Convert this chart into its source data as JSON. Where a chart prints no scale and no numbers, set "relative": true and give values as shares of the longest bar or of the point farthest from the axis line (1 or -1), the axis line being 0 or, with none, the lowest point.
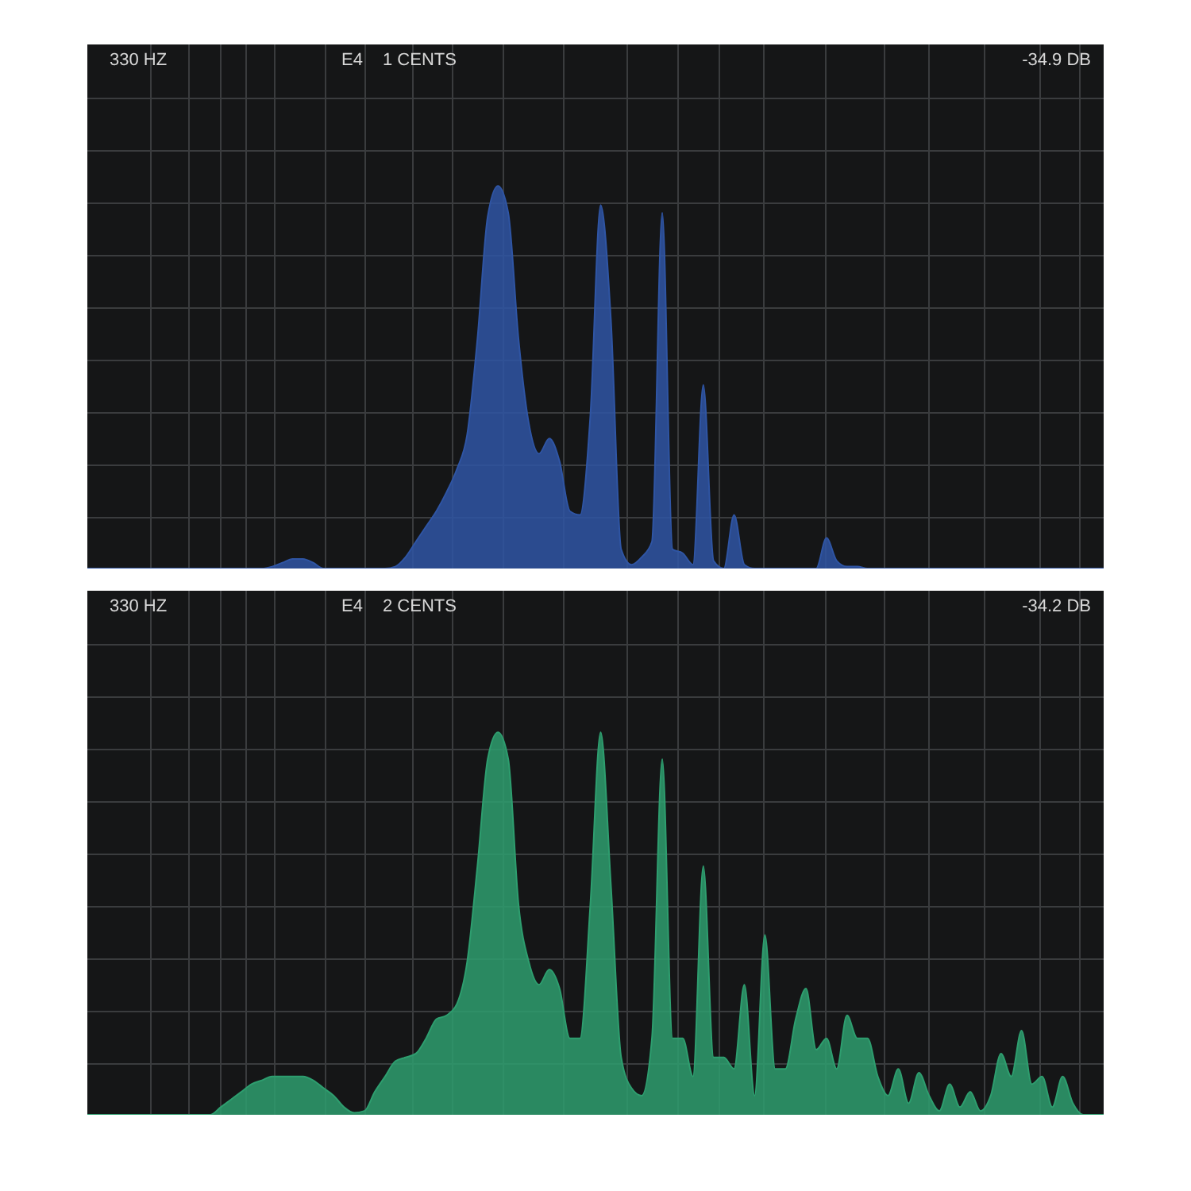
{
  "chart_data": [
    {
      "type": "area",
      "relative": true,
      "grid": true,
      "annotations": [
        "330 HZ",
        "E4",
        "1 CENTS",
        "-34.9 DB"
      ],
      "categories": [
        null,
        null,
        null,
        null,
        null,
        null,
        null,
        null,
        null,
        null,
        null,
        null,
        null,
        null,
        null,
        null,
        null,
        null,
        null,
        null,
        null,
        null,
        null,
        null,
        null,
        null,
        null,
        null,
        null,
        null,
        null,
        null,
        null,
        null,
        null,
        null,
        null,
        null,
        null,
        null,
        null,
        null,
        null,
        null,
        null,
        null,
        null,
        null,
        null,
        null,
        null,
        null,
        null,
        null,
        null,
        null,
        null,
        null,
        null,
        null,
        null,
        null,
        null,
        null,
        null,
        null,
        null,
        null,
        null,
        null,
        null,
        null,
        null,
        null,
        null,
        null,
        null,
        null,
        null,
        null,
        null,
        null,
        null,
        null,
        null,
        null,
        null,
        null,
        null,
        null,
        null,
        null,
        null,
        null,
        null,
        null,
        null,
        null,
        null,
        null
      ],
      "series": [
        {
          "color": "#2f55a4",
          "values": [
            0,
            0,
            0,
            0,
            0,
            0,
            0,
            0,
            0,
            0,
            0,
            0,
            0,
            0,
            0,
            0,
            0,
            0,
            0.005,
            0.015,
            0.025,
            0.025,
            0.015,
            0,
            0,
            0,
            0,
            0,
            0,
            0,
            0.005,
            0.03,
            0.07,
            0.11,
            0.15,
            0.2,
            0.26,
            0.35,
            0.6,
            0.92,
            1,
            0.93,
            0.6,
            0.38,
            0.3,
            0.34,
            0.28,
            0.15,
            0.14,
            0.4,
            0.95,
            0.65,
            0.05,
            0.01,
            0.03,
            0.07,
            0.93,
            0.05,
            0.04,
            0.01,
            0.48,
            0.02,
            0,
            0.14,
            0.01,
            0,
            0,
            0,
            0,
            0,
            0,
            0,
            0.08,
            0.02,
            0.005,
            0.005,
            0,
            0,
            0,
            0,
            0,
            0,
            0,
            0,
            0,
            0,
            0,
            0,
            0,
            0,
            0,
            0,
            0,
            0,
            0,
            0,
            0,
            0,
            0,
            0
          ]
        }
      ]
    },
    {
      "type": "area",
      "relative": true,
      "grid": true,
      "annotations": [
        "330 HZ",
        "E4",
        "2 CENTS",
        "-34.2 DB"
      ],
      "categories": [
        null,
        null,
        null,
        null,
        null,
        null,
        null,
        null,
        null,
        null,
        null,
        null,
        null,
        null,
        null,
        null,
        null,
        null,
        null,
        null,
        null,
        null,
        null,
        null,
        null,
        null,
        null,
        null,
        null,
        null,
        null,
        null,
        null,
        null,
        null,
        null,
        null,
        null,
        null,
        null,
        null,
        null,
        null,
        null,
        null,
        null,
        null,
        null,
        null,
        null,
        null,
        null,
        null,
        null,
        null,
        null,
        null,
        null,
        null,
        null,
        null,
        null,
        null,
        null,
        null,
        null,
        null,
        null,
        null,
        null,
        null,
        null,
        null,
        null,
        null,
        null,
        null,
        null,
        null,
        null,
        null,
        null,
        null,
        null,
        null,
        null,
        null,
        null,
        null,
        null,
        null,
        null,
        null,
        null,
        null,
        null,
        null,
        null,
        null,
        null
      ],
      "series": [
        {
          "color": "#2e9e6f",
          "values": [
            0,
            0,
            0,
            0,
            0,
            0,
            0,
            0,
            0,
            0,
            0,
            0,
            0,
            0.02,
            0.04,
            0.06,
            0.08,
            0.09,
            0.1,
            0.1,
            0.1,
            0.1,
            0.09,
            0.07,
            0.05,
            0.02,
            0.005,
            0.01,
            0.06,
            0.1,
            0.14,
            0.15,
            0.16,
            0.2,
            0.25,
            0.26,
            0.29,
            0.4,
            0.65,
            0.93,
            1,
            0.93,
            0.55,
            0.4,
            0.34,
            0.38,
            0.33,
            0.2,
            0.2,
            0.55,
            1,
            0.6,
            0.15,
            0.07,
            0.05,
            0.2,
            0.93,
            0.2,
            0.2,
            0.1,
            0.65,
            0.15,
            0.15,
            0.12,
            0.34,
            0.05,
            0.47,
            0.12,
            0.12,
            0.25,
            0.33,
            0.17,
            0.2,
            0.12,
            0.26,
            0.2,
            0.2,
            0.1,
            0.05,
            0.12,
            0.03,
            0.11,
            0.05,
            0.01,
            0.08,
            0.02,
            0.06,
            0.01,
            0.05,
            0.16,
            0.1,
            0.22,
            0.08,
            0.1,
            0.02,
            0.1,
            0.03,
            0,
            0,
            0
          ]
        }
      ]
    }
  ]
}
